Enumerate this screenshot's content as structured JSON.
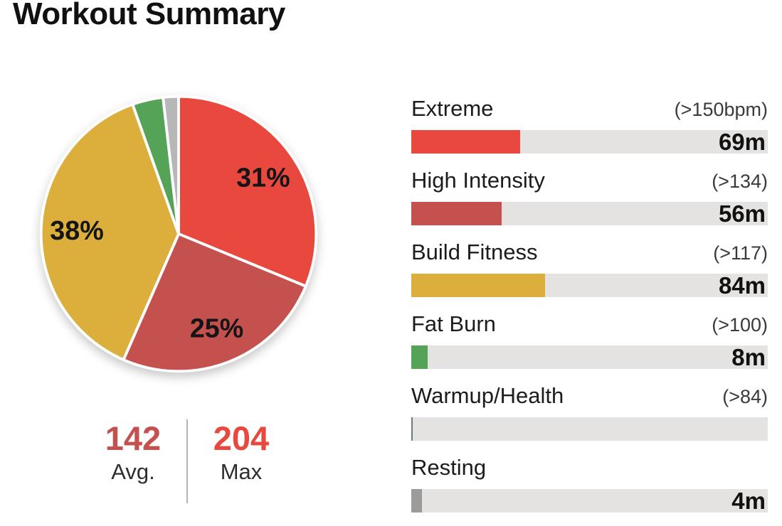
{
  "page": {
    "title": "Workout Summary",
    "background": "#ffffff"
  },
  "summary": {
    "avg": {
      "value": "142",
      "label": "Avg.",
      "color": "#c5514f"
    },
    "max": {
      "value": "204",
      "label": "Max",
      "color": "#e9483f"
    },
    "divider_color": "#b3b3b3"
  },
  "bar_track_color": "#e4e3e1",
  "zones": [
    {
      "name": "Extreme",
      "threshold": "(>150bpm)",
      "time_label": "69m",
      "minutes": 69,
      "color": "#e9483f",
      "bar_percent": 30.6
    },
    {
      "name": "High Intensity",
      "threshold": "(>134)",
      "time_label": "56m",
      "minutes": 56,
      "color": "#c5514f",
      "bar_percent": 25.4
    },
    {
      "name": "Build Fitness",
      "threshold": "(>117)",
      "time_label": "84m",
      "minutes": 84,
      "color": "#dcae3c",
      "bar_percent": 37.6
    },
    {
      "name": "Fat Burn",
      "threshold": "(>100)",
      "time_label": "8m",
      "minutes": 8,
      "color": "#55a356",
      "bar_percent": 4.6
    },
    {
      "name": "Warmup/Health",
      "threshold": "(>84)",
      "time_label": "",
      "minutes": 0,
      "color": "#5f827a",
      "bar_percent": 0.4
    },
    {
      "name": "Resting",
      "threshold": "",
      "time_label": "4m",
      "minutes": 4,
      "color": "#9b9b9b",
      "bar_percent": 3.0
    }
  ],
  "chart_data": {
    "type": "pie",
    "title": "Workout Summary",
    "categories": [
      "Extreme",
      "High Intensity",
      "Build Fitness",
      "Fat Burn",
      "Resting"
    ],
    "values": [
      69,
      56,
      84,
      8,
      4
    ],
    "unit": "minutes",
    "percent_labels": [
      "31%",
      "25%",
      "38%",
      "",
      ""
    ],
    "colors": [
      "#e9483f",
      "#c5514f",
      "#dcae3c",
      "#55a356",
      "#b7b7b7"
    ],
    "start_angle_deg": 0,
    "direction": "clockwise",
    "slice_border_color": "#ffffff",
    "label_color": "#151515",
    "stats": {
      "avg_bpm": 142,
      "max_bpm": 204
    }
  }
}
